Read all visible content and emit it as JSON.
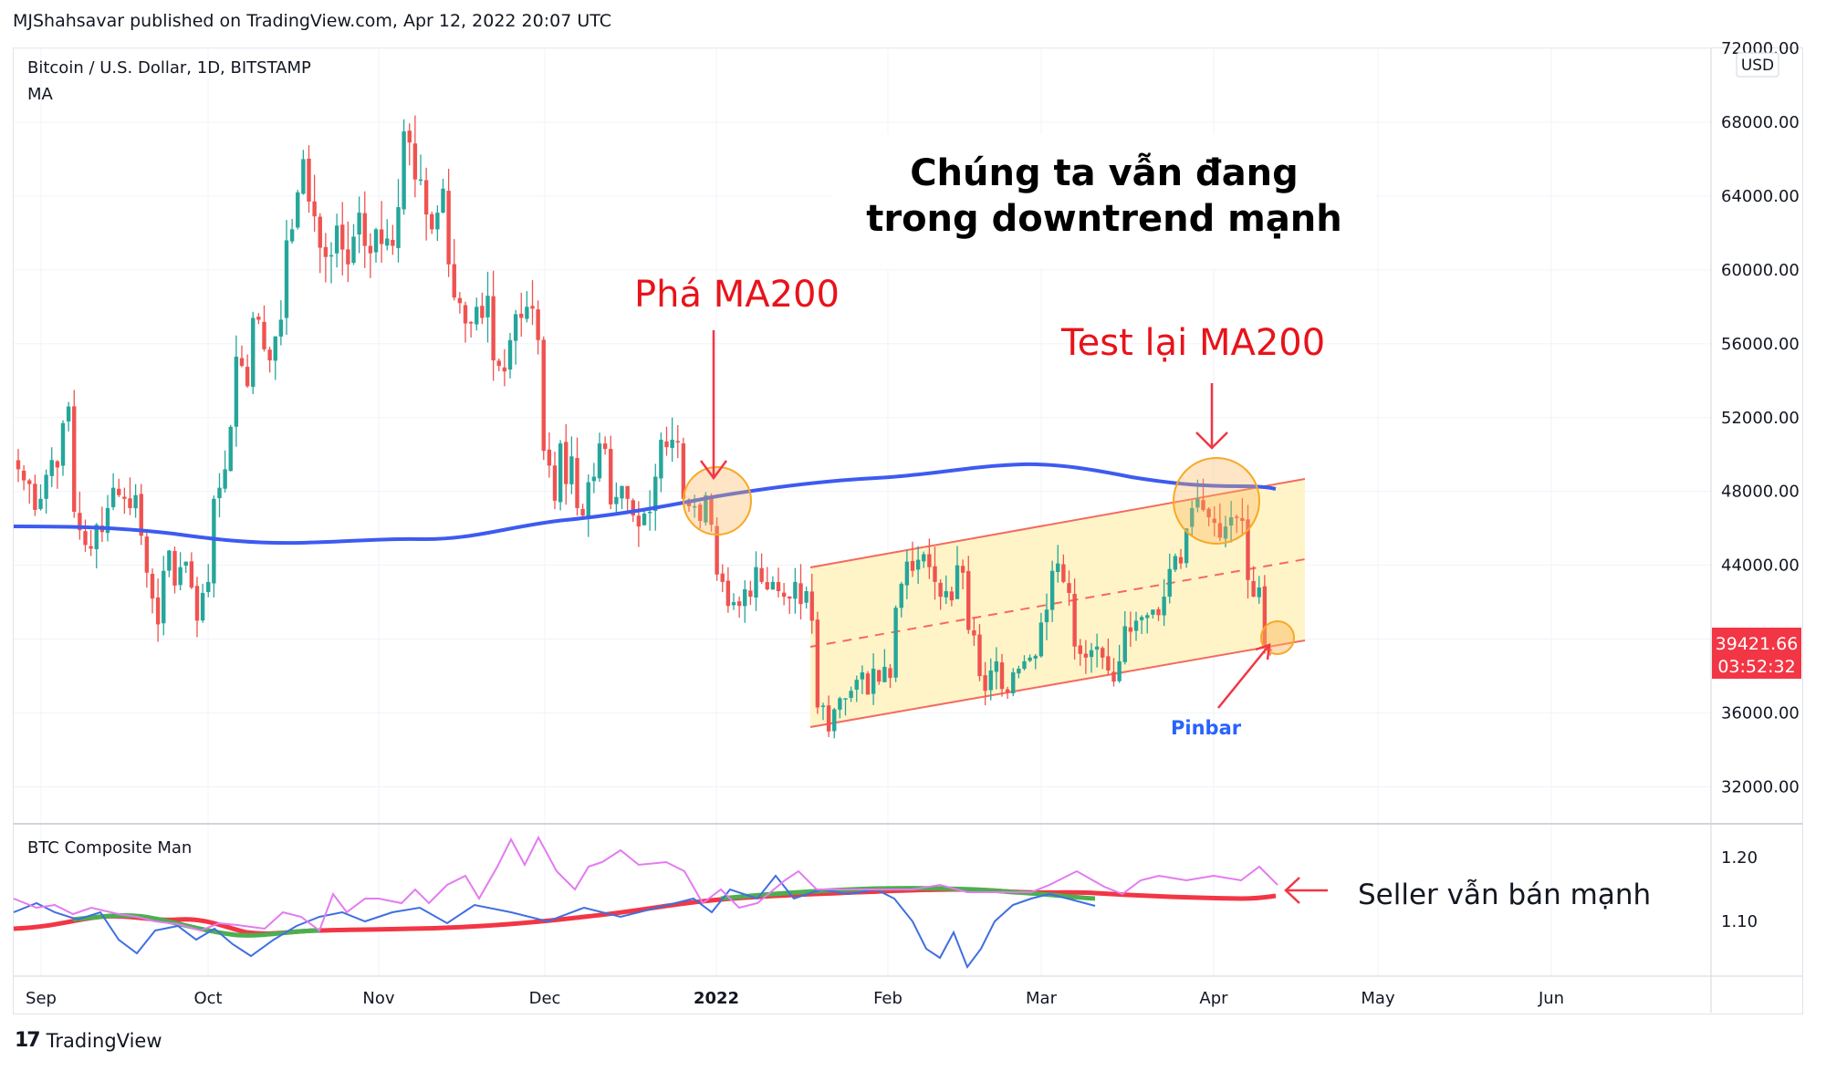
{
  "header": {
    "published": "MJShahsavar published on TradingView.com, Apr 12, 2022 20:07 UTC"
  },
  "legend": {
    "symbol": "Bitcoin / U.S. Dollar, 1D, BITSTAMP",
    "indicator": "MA"
  },
  "currency_badge": "USD",
  "price_axis": {
    "ticks": [
      "72000.00",
      "68000.00",
      "64000.00",
      "60000.00",
      "56000.00",
      "52000.00",
      "48000.00",
      "44000.00",
      "40000.00",
      "36000.00",
      "32000.00"
    ],
    "last_price": "39421.66",
    "countdown": "03:52:32",
    "last_price_color": "#f23645"
  },
  "time_axis": {
    "labels": [
      "Sep",
      "Oct",
      "Nov",
      "Dec",
      "2022",
      "Feb",
      "Mar",
      "Apr",
      "May",
      "Jun"
    ]
  },
  "indicator_pane": {
    "title": "BTC Composite Man",
    "ticks": [
      "1.20",
      "1.10"
    ]
  },
  "annotations": {
    "break_ma": "Phá MA200",
    "retest_ma": "Test lại MA200",
    "headline_line1": "Chúng ta vẫn đang",
    "headline_line2": "trong downtrend mạnh",
    "pinbar": "Pinbar",
    "seller_note": "Seller vẫn bán mạnh"
  },
  "colors": {
    "up": "#26a69a",
    "down": "#ef5350",
    "ma200": "#3d5bf0",
    "channel_fill": "#fff3c4",
    "channel_line": "#f56a5e",
    "circle": "#f9a825",
    "annotation_red": "#e8131a",
    "pinbar_blue": "#2962ff"
  },
  "footer": {
    "brand": "TradingView"
  },
  "chart_data": {
    "type": "candlestick",
    "title": "Bitcoin / U.S. Dollar, 1D, BITSTAMP",
    "ylim": [
      30000,
      72000
    ],
    "price_ticks": [
      72000,
      68000,
      64000,
      60000,
      56000,
      52000,
      48000,
      44000,
      40000,
      36000,
      32000
    ],
    "x_labels": [
      "Sep",
      "Oct",
      "Nov",
      "Dec",
      "2022",
      "Feb",
      "Mar",
      "Apr",
      "May",
      "Jun"
    ],
    "last_price": 39421.66,
    "closes": [
      49200,
      48600,
      48400,
      47000,
      47600,
      48900,
      49700,
      49300,
      51700,
      52600,
      46900,
      45900,
      45100,
      44900,
      46200,
      45800,
      47100,
      48200,
      47800,
      47600,
      47100,
      47800,
      45600,
      43600,
      42200,
      40800,
      43700,
      44800,
      42900,
      43900,
      44200,
      42800,
      41000,
      42500,
      43100,
      47600,
      48200,
      49200,
      51500,
      55300,
      54800,
      53700,
      57400,
      57300,
      55700,
      55100,
      56400,
      57300,
      61600,
      62200,
      64200,
      66000,
      63700,
      62900,
      61200,
      60700,
      60800,
      62400,
      61100,
      60300,
      61800,
      63100,
      61300,
      60900,
      62200,
      61400,
      61700,
      61300,
      63400,
      67500,
      66900,
      64900,
      64900,
      63000,
      62200,
      63100,
      64400,
      60300,
      58500,
      58200,
      57100,
      57100,
      58000,
      57400,
      58600,
      55100,
      54800,
      54500,
      56200,
      57600,
      57400,
      58000,
      57900,
      56200,
      50200,
      49400,
      47500,
      50600,
      48400,
      49900,
      47100,
      46700,
      48500,
      48800,
      50600,
      50300,
      47300,
      47700,
      48300,
      47600,
      46700,
      46100,
      46800,
      46900,
      48800,
      50800,
      50400,
      50800,
      50700,
      47600,
      47200,
      47200,
      46400,
      47800,
      46200,
      43500,
      43100,
      41800,
      42000,
      41800,
      42700,
      42300,
      43900,
      43100,
      42700,
      43100,
      42600,
      42300,
      42200,
      43100,
      41900,
      42600,
      41000,
      36300,
      36400,
      35000,
      36200,
      36800,
      36800,
      37200,
      37800,
      38200,
      37000,
      38400,
      37700,
      38500,
      37900,
      41700,
      43000,
      44200,
      43700,
      44300,
      44600,
      43900,
      43100,
      42300,
      42600,
      42100,
      44000,
      43600,
      40500,
      40200,
      38000,
      37200,
      38300,
      38800,
      37300,
      37100,
      38200,
      38400,
      38800,
      39000,
      39100,
      40900,
      41600,
      43700,
      44100,
      43100,
      42500,
      39600,
      39200,
      39000,
      39400,
      39600,
      39000,
      38300,
      37700,
      38800,
      40700,
      40400,
      41000,
      41200,
      41300,
      41600,
      41300,
      42300,
      43800,
      44500,
      44100,
      46000,
      47100,
      47600,
      47000,
      46600,
      46300,
      45500,
      46100,
      46600,
      46600,
      46400,
      43200,
      42300,
      42800,
      39500,
      39400
    ]
  }
}
